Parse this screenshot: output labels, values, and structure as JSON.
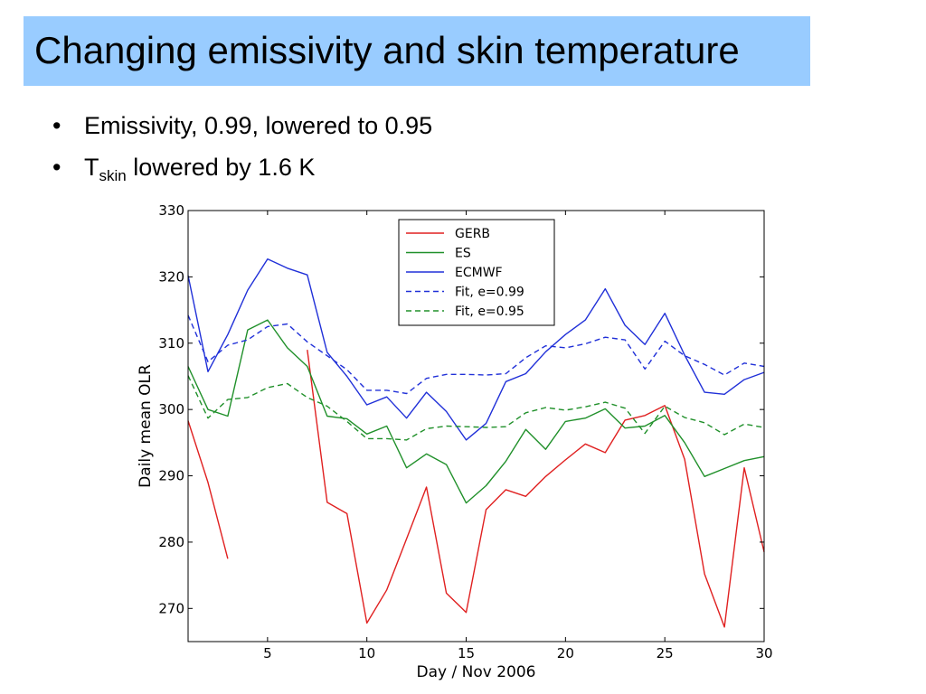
{
  "slide": {
    "title": "Changing emissivity and skin temperature",
    "bullets": [
      {
        "text": "Emissivity, 0.99, lowered to 0.95"
      },
      {
        "prefix": "T",
        "subscript": "skin",
        "text": " lowered by 1.6 K"
      }
    ]
  },
  "chart_data": {
    "type": "line",
    "xlabel": "Day / Nov 2006",
    "ylabel": "Daily mean OLR",
    "xlim": [
      1,
      30
    ],
    "ylim": [
      265,
      330
    ],
    "xticks": [
      5,
      10,
      15,
      20,
      25,
      30
    ],
    "yticks": [
      270,
      280,
      290,
      300,
      310,
      320,
      330
    ],
    "grid": false,
    "legend_position": "top-center",
    "series": [
      {
        "name": "GERB",
        "color": "#e02020",
        "style": "solid",
        "x": [
          1,
          2,
          3,
          7,
          8,
          9,
          10,
          11,
          12,
          13,
          14,
          15,
          16,
          17,
          18,
          19,
          20,
          21,
          22,
          23,
          24,
          25,
          26,
          27,
          28,
          29,
          30
        ],
        "y": [
          298.3,
          289,
          277.5,
          309,
          286,
          284.3,
          267.8,
          272.8,
          280.5,
          288.3,
          272.3,
          269.4,
          284.9,
          287.9,
          286.9,
          289.9,
          292.4,
          294.8,
          293.5,
          298.4,
          299.1,
          300.6,
          292.5,
          275.2,
          267.2,
          291.2,
          278.5
        ]
      },
      {
        "name": "ES",
        "color": "#20902a",
        "style": "solid",
        "x": [
          1,
          2,
          3,
          4,
          5,
          6,
          7,
          8,
          9,
          10,
          11,
          12,
          13,
          14,
          15,
          16,
          17,
          18,
          19,
          20,
          21,
          22,
          23,
          24,
          25,
          26,
          27,
          28,
          29,
          30
        ],
        "y": [
          306.5,
          300,
          299,
          312,
          313.5,
          309.3,
          306.5,
          299,
          298.6,
          296.3,
          297.5,
          291.2,
          293.3,
          291.7,
          285.9,
          288.5,
          292.2,
          297,
          294,
          298.2,
          298.7,
          300.1,
          297.2,
          297.5,
          299.1,
          295,
          289.9,
          291.1,
          292.3,
          292.9
        ]
      },
      {
        "name": "ECMWF",
        "color": "#2030d8",
        "style": "solid",
        "x": [
          1,
          2,
          3,
          4,
          5,
          6,
          7,
          8,
          9,
          10,
          11,
          12,
          13,
          14,
          15,
          16,
          17,
          18,
          19,
          20,
          21,
          22,
          23,
          24,
          25,
          26,
          27,
          28,
          29,
          30
        ],
        "y": [
          320.2,
          305.7,
          311.3,
          318,
          322.7,
          321.3,
          320.3,
          308.6,
          305,
          300.7,
          301.9,
          298.7,
          302.6,
          299.7,
          295.4,
          297.9,
          304.2,
          305.4,
          308.7,
          311.3,
          313.5,
          318.2,
          312.7,
          309.8,
          314.5,
          308.2,
          302.6,
          302.3,
          304.5,
          305.6
        ]
      },
      {
        "name": "Fit, e=0.99",
        "color": "#2030d8",
        "style": "dashed",
        "x": [
          1,
          2,
          3,
          4,
          5,
          6,
          7,
          8,
          9,
          10,
          11,
          12,
          13,
          14,
          15,
          16,
          17,
          18,
          19,
          20,
          21,
          22,
          23,
          24,
          25,
          26,
          27,
          28,
          29,
          30
        ],
        "y": [
          314.2,
          307.2,
          309.7,
          310.5,
          312.5,
          312.9,
          310.2,
          308.1,
          306,
          302.9,
          302.9,
          302.4,
          304.7,
          305.3,
          305.3,
          305.2,
          305.4,
          307.8,
          309.6,
          309.3,
          309.9,
          310.9,
          310.5,
          306.1,
          310.3,
          308.1,
          306.8,
          305.2,
          307,
          306.5
        ]
      },
      {
        "name": "Fit, e=0.95",
        "color": "#20902a",
        "style": "dashed",
        "x": [
          1,
          2,
          3,
          4,
          5,
          6,
          7,
          8,
          9,
          10,
          11,
          12,
          13,
          14,
          15,
          16,
          17,
          18,
          19,
          20,
          21,
          22,
          23,
          24,
          25,
          26,
          27,
          28,
          29,
          30
        ],
        "y": [
          305.1,
          298.7,
          301.5,
          301.8,
          303.3,
          303.9,
          301.8,
          300.5,
          298.2,
          295.6,
          295.6,
          295.4,
          297.1,
          297.5,
          297.4,
          297.3,
          297.4,
          299.5,
          300.3,
          299.9,
          300.4,
          301.1,
          300.2,
          296.4,
          300.5,
          298.8,
          298,
          296.2,
          297.8,
          297.3
        ]
      }
    ]
  }
}
